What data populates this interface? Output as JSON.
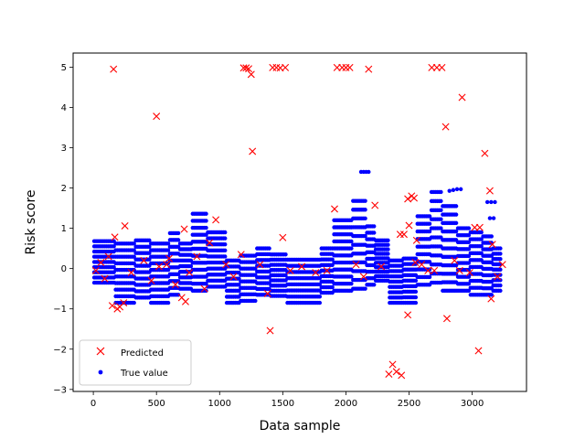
{
  "chart_data": {
    "type": "scatter",
    "xlabel": "Data sample",
    "ylabel": "Risk score",
    "xlim": [
      -160,
      3430
    ],
    "ylim": [
      -3.05,
      5.35
    ],
    "xticks": [
      0,
      500,
      1000,
      1500,
      2000,
      2500,
      3000
    ],
    "yticks": [
      -3,
      -2,
      -1,
      0,
      1,
      2,
      3,
      4,
      5
    ],
    "grid": false,
    "legend_position": "lower-left",
    "series": [
      {
        "name": "Predicted",
        "marker": "x",
        "color": "#ff0000",
        "points": [
          [
            160,
            4.95
          ],
          [
            500,
            3.78
          ],
          [
            1190,
            4.98
          ],
          [
            1210,
            4.98
          ],
          [
            1230,
            4.96
          ],
          [
            1250,
            4.82
          ],
          [
            1420,
            4.99
          ],
          [
            1450,
            4.99
          ],
          [
            1480,
            4.98
          ],
          [
            1520,
            4.99
          ],
          [
            1930,
            4.99
          ],
          [
            1970,
            4.99
          ],
          [
            2000,
            4.99
          ],
          [
            2030,
            4.99
          ],
          [
            2180,
            4.95
          ],
          [
            2680,
            4.99
          ],
          [
            2720,
            4.99
          ],
          [
            2760,
            4.99
          ],
          [
            2920,
            4.25
          ],
          [
            2790,
            3.52
          ],
          [
            3100,
            2.86
          ],
          [
            1260,
            2.91
          ],
          [
            3140,
            1.93
          ],
          [
            1910,
            1.48
          ],
          [
            2230,
            1.57
          ],
          [
            2490,
            1.73
          ],
          [
            2520,
            1.8
          ],
          [
            2540,
            1.75
          ],
          [
            250,
            1.06
          ],
          [
            970,
            1.21
          ],
          [
            2430,
            0.85
          ],
          [
            2460,
            0.85
          ],
          [
            2500,
            1.07
          ],
          [
            3020,
            1.02
          ],
          [
            3060,
            1.02
          ],
          [
            3160,
            0.6
          ],
          [
            720,
            0.98
          ],
          [
            1500,
            0.77
          ],
          [
            170,
            0.78
          ],
          [
            2560,
            0.7
          ],
          [
            920,
            0.64
          ],
          [
            600,
            0.25
          ],
          [
            150,
            -0.92
          ],
          [
            190,
            -1.0
          ],
          [
            210,
            -0.95
          ],
          [
            240,
            -0.85
          ],
          [
            700,
            -0.72
          ],
          [
            730,
            -0.82
          ],
          [
            1380,
            -0.62
          ],
          [
            1400,
            -1.54
          ],
          [
            2490,
            -1.15
          ],
          [
            2800,
            -1.24
          ],
          [
            3150,
            -0.75
          ],
          [
            3050,
            -2.04
          ],
          [
            2340,
            -2.62
          ],
          [
            2370,
            -2.38
          ],
          [
            2400,
            -2.56
          ],
          [
            2440,
            -2.65
          ],
          [
            20,
            -0.05
          ],
          [
            60,
            0.15
          ],
          [
            90,
            -0.25
          ],
          [
            120,
            0.3
          ],
          [
            300,
            -0.1
          ],
          [
            400,
            0.2
          ],
          [
            460,
            -0.3
          ],
          [
            520,
            0.05
          ],
          [
            580,
            0.1
          ],
          [
            650,
            -0.4
          ],
          [
            760,
            -0.1
          ],
          [
            820,
            0.3
          ],
          [
            880,
            -0.5
          ],
          [
            1050,
            0.1
          ],
          [
            1110,
            -0.2
          ],
          [
            1170,
            0.35
          ],
          [
            1320,
            0.1
          ],
          [
            1560,
            -0.05
          ],
          [
            1650,
            0.05
          ],
          [
            1760,
            -0.1
          ],
          [
            1850,
            -0.05
          ],
          [
            2080,
            0.1
          ],
          [
            2140,
            -0.2
          ],
          [
            2280,
            0.05
          ],
          [
            2600,
            0.1
          ],
          [
            2650,
            -0.05
          ],
          [
            2860,
            0.2
          ],
          [
            2980,
            -0.1
          ],
          [
            3200,
            -0.2
          ],
          [
            3240,
            0.1
          ],
          [
            2900,
            -0.05
          ],
          [
            2700,
            -0.05
          ],
          [
            2550,
            0.15
          ]
        ]
      },
      {
        "name": "True value",
        "marker": "dot",
        "color": "#0000ff",
        "segments": [
          [
            0,
            170,
            -0.35,
            0.68,
            9
          ],
          [
            170,
            330,
            -0.85,
            0.62,
            10
          ],
          [
            330,
            450,
            -0.72,
            0.7,
            10
          ],
          [
            450,
            600,
            -0.85,
            0.62,
            10
          ],
          [
            600,
            680,
            -0.65,
            0.88,
            10
          ],
          [
            680,
            780,
            -0.5,
            0.62,
            9
          ],
          [
            780,
            900,
            -0.55,
            1.36,
            12
          ],
          [
            900,
            1050,
            -0.45,
            0.9,
            10
          ],
          [
            1050,
            1160,
            -0.85,
            0.2,
            8
          ],
          [
            1160,
            1290,
            -0.8,
            0.32,
            8
          ],
          [
            1290,
            1400,
            -0.65,
            0.5,
            9
          ],
          [
            1400,
            1530,
            -0.68,
            0.35,
            9
          ],
          [
            1530,
            1800,
            -0.85,
            0.22,
            8
          ],
          [
            1800,
            1900,
            -0.6,
            0.5,
            9
          ],
          [
            1900,
            2050,
            -0.55,
            1.2,
            11
          ],
          [
            2050,
            2160,
            -0.5,
            1.68,
            11
          ],
          [
            2160,
            2230,
            -0.4,
            1.05,
            10
          ],
          [
            2230,
            2340,
            -0.3,
            0.7,
            10
          ],
          [
            2340,
            2450,
            -0.85,
            0.2,
            9
          ],
          [
            2450,
            2560,
            -0.85,
            0.25,
            9
          ],
          [
            2560,
            2670,
            -0.4,
            1.3,
            10
          ],
          [
            2670,
            2760,
            -0.35,
            1.9,
            11
          ],
          [
            2760,
            2880,
            -0.55,
            1.55,
            11
          ],
          [
            2880,
            2980,
            -0.55,
            1.0,
            10
          ],
          [
            2980,
            3080,
            -0.65,
            0.9,
            10
          ],
          [
            3080,
            3160,
            -0.65,
            0.8,
            10
          ],
          [
            3160,
            3230,
            -0.55,
            0.5,
            9
          ]
        ],
        "extra_points": [
          [
            2120,
            2.4
          ],
          [
            2140,
            2.4
          ],
          [
            2160,
            2.4
          ],
          [
            2180,
            2.4
          ],
          [
            2820,
            1.93
          ],
          [
            2850,
            1.95
          ],
          [
            2880,
            1.97
          ],
          [
            2910,
            1.97
          ],
          [
            3120,
            1.65
          ],
          [
            3150,
            1.65
          ],
          [
            3180,
            1.65
          ],
          [
            3140,
            1.25
          ],
          [
            3170,
            1.25
          ]
        ]
      }
    ],
    "legend": [
      {
        "label": "Predicted"
      },
      {
        "label": "True value"
      }
    ]
  }
}
